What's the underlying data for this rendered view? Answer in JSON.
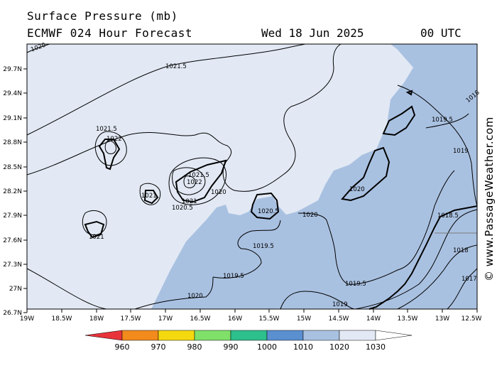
{
  "header": {
    "title": "Surface Pressure (mb)",
    "model": "ECMWF 024 Hour Forecast",
    "date": "Wed 18 Jun 2025",
    "time": "00 UTC"
  },
  "axes": {
    "lat_labels": [
      "29.7N",
      "29.4N",
      "29.1N",
      "28.8N",
      "28.5N",
      "28.2N",
      "27.9N",
      "27.6N",
      "27.3N",
      "27N",
      "26.7N"
    ],
    "lon_labels": [
      "19W",
      "18.5W",
      "18W",
      "17.5W",
      "17W",
      "16.5W",
      "16W",
      "15.5W",
      "15W",
      "14.5W",
      "14W",
      "13.5W",
      "13W",
      "12.5W"
    ]
  },
  "isobar_labels": {
    "l1020_top_left": "1020",
    "l1021_5_top": "1021.5",
    "l1021_5_lapalma": "1021.5",
    "l1022_lapalma": "1022",
    "l1021_gomera": "1021",
    "l1021_5_tenerife": "1021.5",
    "l1022_tenerife": "1022",
    "l1021_tenerife": "1021",
    "l1020_5_tenerife": "1020.5",
    "l1020_center": "1020",
    "l1021_hierro": "1021",
    "l1020_5_grancanaria": "1020.5",
    "l1019_5_grancanaria": "1019.5",
    "l1020_mid": "1020",
    "l1020_fuerteventura": "1020",
    "l1019_5_east": "1019.5",
    "l1019_east": "1019",
    "l1018_5_east": "1018.5",
    "l1018_east": "1018",
    "l1017_east": "1017",
    "l1019_5_southwest": "1019.5",
    "l1019_5_south": "1019.5",
    "l1020_bottom": "1020",
    "l1019_bottom": "1019",
    "l1018_corner": "1018"
  },
  "legend": {
    "labels": [
      "960",
      "970",
      "980",
      "990",
      "1000",
      "1010",
      "1020",
      "1030"
    ],
    "colors": [
      "#e8333a",
      "#f28a1c",
      "#f5d90f",
      "#7fe06a",
      "#2dbf8c",
      "#5a8fd0",
      "#a9c1e1",
      "#e2e9f4"
    ]
  },
  "watermark": "© www.PassageWeather.com",
  "colors": {
    "high_pressure_fill": "#e2e9f4",
    "mid_pressure_fill": "#a9c1e1"
  }
}
